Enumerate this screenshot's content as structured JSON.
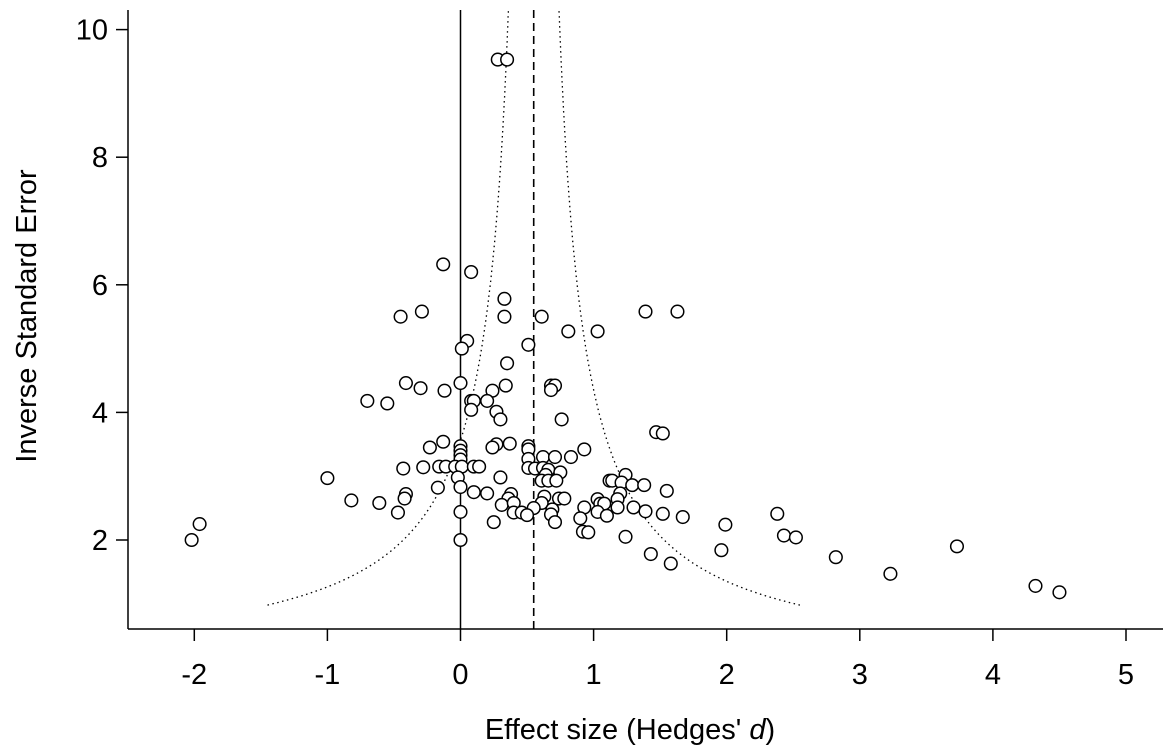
{
  "chart_data": {
    "type": "scatter",
    "title": "",
    "xlabel": "Effect size (Hedges' ",
    "xlabel_italic": "d",
    "xlabel_close": ")",
    "ylabel": "Inverse Standard Error",
    "xlim": [
      -2.5,
      5.25
    ],
    "ylim": [
      0.75,
      10.3
    ],
    "xticks": [
      -2,
      -1,
      0,
      1,
      2,
      3,
      4,
      5
    ],
    "yticks": [
      2,
      4,
      6,
      8,
      10
    ],
    "reference_line_x": 0,
    "pooled_effect_x": 0.55,
    "funnel": {
      "center": 0.55,
      "multiplier": 1.96,
      "y_min": 0.98,
      "y_max": 10.3
    },
    "grid": false,
    "legend": "none",
    "points": [
      {
        "x": 0.28,
        "y": 9.53
      },
      {
        "x": 0.35,
        "y": 9.53
      },
      {
        "x": -0.13,
        "y": 6.32
      },
      {
        "x": 0.08,
        "y": 6.2
      },
      {
        "x": 0.33,
        "y": 5.78
      },
      {
        "x": -0.45,
        "y": 5.5
      },
      {
        "x": -0.29,
        "y": 5.58
      },
      {
        "x": 0.33,
        "y": 5.5
      },
      {
        "x": 0.61,
        "y": 5.5
      },
      {
        "x": 1.39,
        "y": 5.58
      },
      {
        "x": 1.63,
        "y": 5.58
      },
      {
        "x": 0.81,
        "y": 5.27
      },
      {
        "x": 1.03,
        "y": 5.27
      },
      {
        "x": 0.05,
        "y": 5.12
      },
      {
        "x": 0.01,
        "y": 5.0
      },
      {
        "x": 0.51,
        "y": 5.06
      },
      {
        "x": 0.35,
        "y": 4.77
      },
      {
        "x": 0.0,
        "y": 4.46
      },
      {
        "x": -0.41,
        "y": 4.46
      },
      {
        "x": -0.3,
        "y": 4.38
      },
      {
        "x": -0.12,
        "y": 4.34
      },
      {
        "x": 0.34,
        "y": 4.42
      },
      {
        "x": 0.24,
        "y": 4.34
      },
      {
        "x": 0.68,
        "y": 4.42
      },
      {
        "x": 0.71,
        "y": 4.42
      },
      {
        "x": 0.68,
        "y": 4.35
      },
      {
        "x": -0.7,
        "y": 4.18
      },
      {
        "x": -0.55,
        "y": 4.14
      },
      {
        "x": 0.08,
        "y": 4.18
      },
      {
        "x": 0.2,
        "y": 4.18
      },
      {
        "x": 0.1,
        "y": 4.18
      },
      {
        "x": 0.08,
        "y": 4.04
      },
      {
        "x": 0.27,
        "y": 4.01
      },
      {
        "x": 0.3,
        "y": 3.89
      },
      {
        "x": 0.76,
        "y": 3.89
      },
      {
        "x": 1.47,
        "y": 3.69
      },
      {
        "x": 1.52,
        "y": 3.67
      },
      {
        "x": -0.13,
        "y": 3.54
      },
      {
        "x": -0.23,
        "y": 3.45
      },
      {
        "x": 0.0,
        "y": 3.47
      },
      {
        "x": 0.0,
        "y": 3.4
      },
      {
        "x": 0.27,
        "y": 3.5
      },
      {
        "x": 0.24,
        "y": 3.45
      },
      {
        "x": 0.37,
        "y": 3.51
      },
      {
        "x": 0.51,
        "y": 3.47
      },
      {
        "x": 0.51,
        "y": 3.42
      },
      {
        "x": 0.93,
        "y": 3.42
      },
      {
        "x": 0.0,
        "y": 3.33
      },
      {
        "x": 0.51,
        "y": 3.27
      },
      {
        "x": 0.62,
        "y": 3.3
      },
      {
        "x": 0.71,
        "y": 3.3
      },
      {
        "x": 0.83,
        "y": 3.3
      },
      {
        "x": 0.0,
        "y": 3.26
      },
      {
        "x": -0.16,
        "y": 3.15
      },
      {
        "x": -0.11,
        "y": 3.15
      },
      {
        "x": -0.04,
        "y": 3.15
      },
      {
        "x": 0.01,
        "y": 3.15
      },
      {
        "x": 0.1,
        "y": 3.15
      },
      {
        "x": 0.14,
        "y": 3.15
      },
      {
        "x": -0.28,
        "y": 3.14
      },
      {
        "x": -0.43,
        "y": 3.12
      },
      {
        "x": 0.51,
        "y": 3.13
      },
      {
        "x": 0.56,
        "y": 3.12
      },
      {
        "x": 0.62,
        "y": 3.13
      },
      {
        "x": 0.66,
        "y": 3.1
      },
      {
        "x": 0.75,
        "y": 3.06
      },
      {
        "x": 0.64,
        "y": 3.02
      },
      {
        "x": -0.02,
        "y": 2.98
      },
      {
        "x": 0.3,
        "y": 2.98
      },
      {
        "x": -1.0,
        "y": 2.97
      },
      {
        "x": 0.61,
        "y": 2.93
      },
      {
        "x": 0.66,
        "y": 2.93
      },
      {
        "x": 0.72,
        "y": 2.93
      },
      {
        "x": 1.12,
        "y": 2.93
      },
      {
        "x": 1.14,
        "y": 2.93
      },
      {
        "x": 1.24,
        "y": 3.02
      },
      {
        "x": 1.21,
        "y": 2.9
      },
      {
        "x": 1.29,
        "y": 2.86
      },
      {
        "x": 1.38,
        "y": 2.86
      },
      {
        "x": -0.17,
        "y": 2.82
      },
      {
        "x": 0.0,
        "y": 2.83
      },
      {
        "x": 0.1,
        "y": 2.75
      },
      {
        "x": 0.2,
        "y": 2.73
      },
      {
        "x": 0.38,
        "y": 2.72
      },
      {
        "x": 0.36,
        "y": 2.65
      },
      {
        "x": 0.63,
        "y": 2.68
      },
      {
        "x": 0.74,
        "y": 2.65
      },
      {
        "x": 0.78,
        "y": 2.65
      },
      {
        "x": 1.03,
        "y": 2.64
      },
      {
        "x": 1.2,
        "y": 2.73
      },
      {
        "x": 1.55,
        "y": 2.77
      },
      {
        "x": 1.18,
        "y": 2.64
      },
      {
        "x": -0.41,
        "y": 2.72
      },
      {
        "x": -0.42,
        "y": 2.65
      },
      {
        "x": -0.82,
        "y": 2.62
      },
      {
        "x": -0.61,
        "y": 2.58
      },
      {
        "x": 0.31,
        "y": 2.55
      },
      {
        "x": 0.4,
        "y": 2.58
      },
      {
        "x": 0.61,
        "y": 2.58
      },
      {
        "x": 0.55,
        "y": 2.5
      },
      {
        "x": 1.05,
        "y": 2.57
      },
      {
        "x": 1.08,
        "y": 2.57
      },
      {
        "x": 0.93,
        "y": 2.51
      },
      {
        "x": 1.18,
        "y": 2.51
      },
      {
        "x": 1.3,
        "y": 2.51
      },
      {
        "x": -0.47,
        "y": 2.43
      },
      {
        "x": 0.0,
        "y": 2.44
      },
      {
        "x": 0.4,
        "y": 2.43
      },
      {
        "x": 0.46,
        "y": 2.43
      },
      {
        "x": 0.5,
        "y": 2.39
      },
      {
        "x": 0.69,
        "y": 2.48
      },
      {
        "x": 0.68,
        "y": 2.4
      },
      {
        "x": 1.03,
        "y": 2.44
      },
      {
        "x": 1.1,
        "y": 2.38
      },
      {
        "x": 1.39,
        "y": 2.45
      },
      {
        "x": 1.52,
        "y": 2.41
      },
      {
        "x": 1.67,
        "y": 2.36
      },
      {
        "x": 0.9,
        "y": 2.34
      },
      {
        "x": 0.25,
        "y": 2.28
      },
      {
        "x": 0.71,
        "y": 2.28
      },
      {
        "x": 2.38,
        "y": 2.41
      },
      {
        "x": -1.96,
        "y": 2.25
      },
      {
        "x": 1.99,
        "y": 2.24
      },
      {
        "x": 0.92,
        "y": 2.13
      },
      {
        "x": 0.96,
        "y": 2.12
      },
      {
        "x": -2.02,
        "y": 2.0
      },
      {
        "x": 0.0,
        "y": 2.0
      },
      {
        "x": 1.24,
        "y": 2.05
      },
      {
        "x": 2.43,
        "y": 2.07
      },
      {
        "x": 2.52,
        "y": 2.04
      },
      {
        "x": 3.73,
        "y": 1.9
      },
      {
        "x": 1.43,
        "y": 1.78
      },
      {
        "x": 1.96,
        "y": 1.84
      },
      {
        "x": 2.82,
        "y": 1.73
      },
      {
        "x": 1.58,
        "y": 1.63
      },
      {
        "x": 3.23,
        "y": 1.47
      },
      {
        "x": 4.32,
        "y": 1.28
      },
      {
        "x": 4.5,
        "y": 1.18
      }
    ]
  }
}
